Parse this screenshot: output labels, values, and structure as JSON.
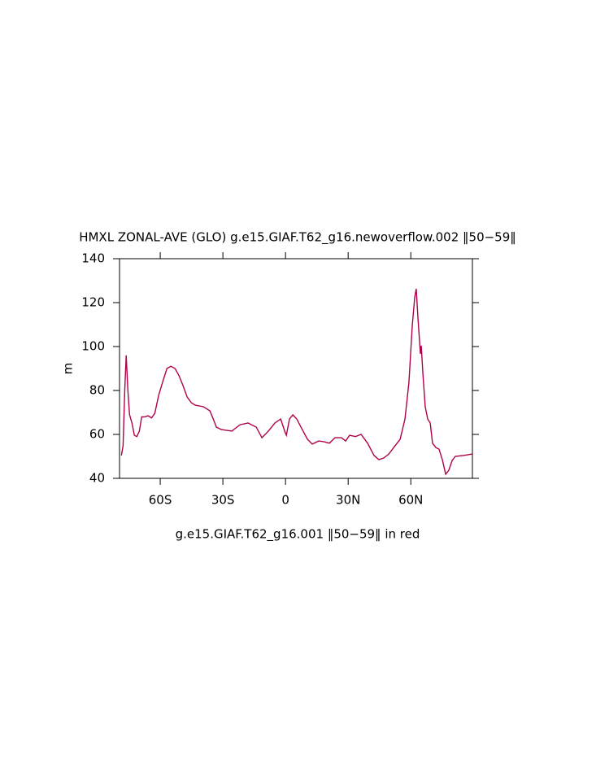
{
  "chart_data": {
    "type": "line",
    "title": "HMXL ZONAL-AVE (GLO) g.e15.GIAF.T62_g16.newoverflow.002 ‖50−59‖",
    "subtitle": "g.e15.GIAF.T62_g16.001 ‖50−59‖ in red",
    "y_label": "m",
    "xlim": [
      -79.5,
      89.5
    ],
    "xticks": [
      {
        "value": -60,
        "label": "60S"
      },
      {
        "value": -30,
        "label": "30S"
      },
      0,
      {
        "value": 30,
        "label": "30N"
      },
      {
        "value": 60,
        "label": "60N"
      }
    ],
    "ylim": [
      40,
      140
    ],
    "yticks": [
      40,
      60,
      80,
      100,
      120,
      140
    ],
    "x": [
      -78.6,
      -77.8,
      -77,
      -76.3,
      -75.5,
      -74.7,
      -73.5,
      -72.4,
      -71.2,
      -70,
      -68.9,
      -67.3,
      -65.8,
      -64.2,
      -62.6,
      -60.7,
      -58.8,
      -56.8,
      -54.9,
      -52.9,
      -51,
      -49,
      -47.1,
      -45.1,
      -43.2,
      -39.3,
      -36.2,
      -34.6,
      -33.1,
      -30.7,
      -25.7,
      -21.8,
      -17.9,
      -14,
      -11.3,
      -8.2,
      -5.1,
      -2.3,
      -0.4,
      0.4,
      1.9,
      3.5,
      5.4,
      7.4,
      10.5,
      12.8,
      15.9,
      18.3,
      21,
      23.7,
      26.8,
      28.8,
      30.7,
      33.5,
      36.2,
      39.3,
      42.4,
      44.7,
      47.1,
      49.4,
      51.8,
      54.9,
      57.2,
      59.1,
      60.7,
      61.9,
      62.6,
      63.4,
      64.6,
      65,
      65.8,
      66.9,
      68.1,
      69.3,
      70.4,
      72,
      73.5,
      75.1,
      76.7,
      78.2,
      79.8,
      81.3,
      85.2,
      89.5
    ],
    "series": [
      {
        "color": "#b0004a",
        "values": [
          50.4,
          54.8,
          80,
          96,
          80,
          69,
          65,
          59.6,
          59,
          61.5,
          68,
          68,
          68.5,
          67.5,
          69.6,
          78,
          84,
          90,
          91,
          90,
          86.7,
          82,
          77,
          74.4,
          73.3,
          72.6,
          70.7,
          67,
          63.3,
          62.2,
          61.5,
          64.4,
          65.2,
          63.3,
          58.5,
          61.5,
          65.2,
          67,
          61.5,
          59.6,
          67,
          68.9,
          67,
          63.3,
          57.8,
          55.6,
          57,
          56.7,
          56,
          58.5,
          58.5,
          57,
          59.6,
          59,
          60,
          56,
          50.4,
          48.5,
          49.3,
          51,
          54,
          57.8,
          67,
          83.7,
          109.6,
          122.6,
          126.3,
          113.3,
          96.7,
          100.4,
          87.4,
          72.6,
          67,
          65.2,
          56,
          54,
          53.3,
          48.5,
          41.9,
          43.7,
          48.1,
          50,
          50.4,
          51.1
        ]
      }
    ]
  }
}
